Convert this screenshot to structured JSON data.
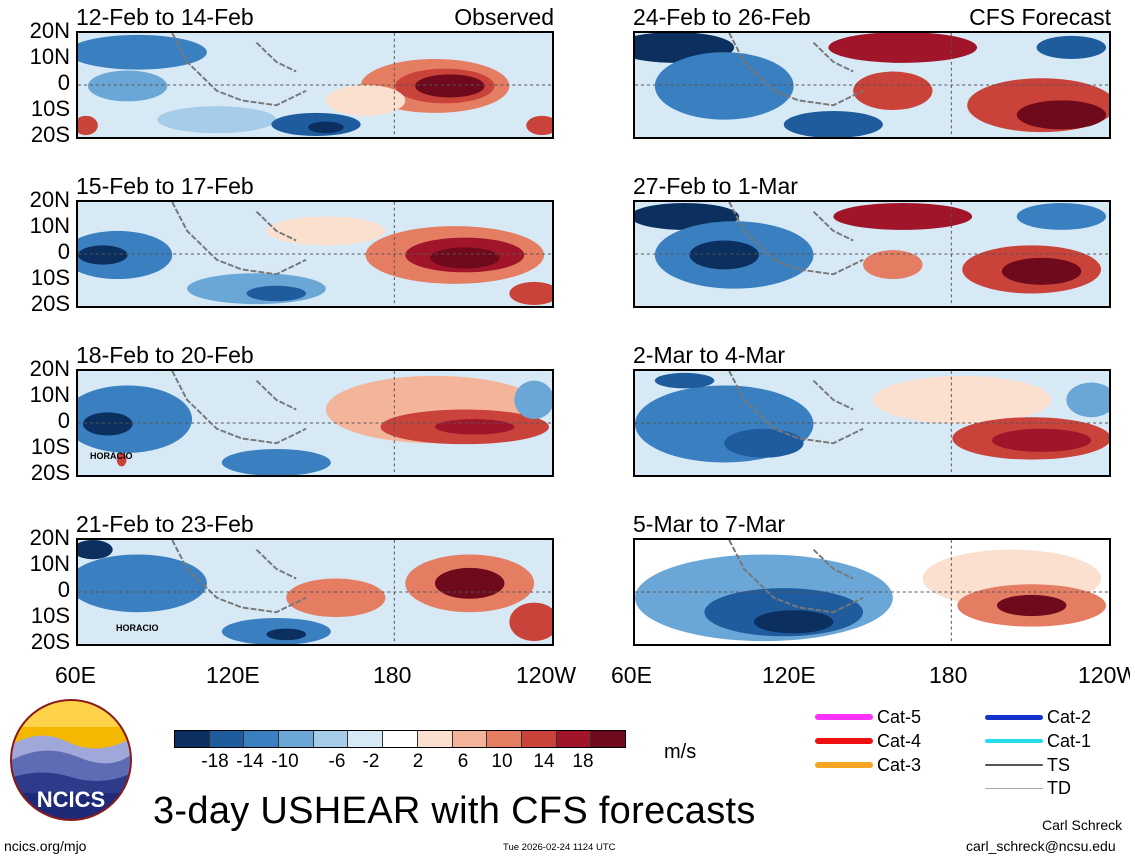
{
  "panels": [
    {
      "title": "12-Feb to 14-Feb",
      "source": "Observed"
    },
    {
      "title": "15-Feb to 17-Feb",
      "source": ""
    },
    {
      "title": "18-Feb to 20-Feb",
      "source": ""
    },
    {
      "title": "21-Feb to 23-Feb",
      "source": ""
    },
    {
      "title": "24-Feb to 26-Feb",
      "source": "CFS Forecast"
    },
    {
      "title": "27-Feb to 1-Mar",
      "source": ""
    },
    {
      "title": "2-Mar to 4-Mar",
      "source": ""
    },
    {
      "title": "5-Mar to 7-Mar",
      "source": ""
    }
  ],
  "lat_labels": [
    "20N",
    "10N",
    "0",
    "10S",
    "20S"
  ],
  "lon_labels": [
    "60E",
    "120E",
    "180",
    "120W"
  ],
  "storm_labels": {
    "p3": "HORACIO",
    "p4": "HORACIO"
  },
  "colorbar": {
    "ticks": [
      "-18",
      "-14",
      "-10",
      "-6",
      "-2",
      "2",
      "6",
      "10",
      "14",
      "18"
    ],
    "units": "m/s",
    "colors": [
      "#0b2f5e",
      "#1f5c9e",
      "#3a80c0",
      "#6aa6d6",
      "#a5cce9",
      "#d6e9f5",
      "#ffffff",
      "#fbe0d0",
      "#f3b49a",
      "#e47d62",
      "#c9433a",
      "#a0152a",
      "#6e0a1c"
    ]
  },
  "legend": {
    "items": [
      {
        "label": "Cat-5",
        "color": "#ff33ff"
      },
      {
        "label": "Cat-4",
        "color": "#ee1111"
      },
      {
        "label": "Cat-3",
        "color": "#f5a623"
      },
      {
        "label": "Cat-2",
        "color": "#1133cc"
      },
      {
        "label": "Cat-1",
        "color": "#22ddee"
      },
      {
        "label": "TS",
        "color": "#555555"
      },
      {
        "label": "TD",
        "color": "#aaaaaa"
      }
    ]
  },
  "logo_text": "NCICS",
  "footer": {
    "title": "3-day USHEAR with CFS forecasts",
    "url": "ncics.org/mjo",
    "timestamp": "Tue 2026-02-24 1124 UTC",
    "author": "Carl Schreck",
    "email": "carl_schreck@ncsu.edu"
  }
}
